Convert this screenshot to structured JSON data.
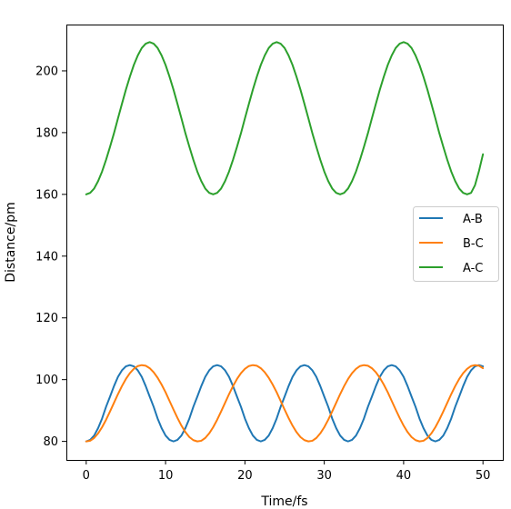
{
  "chart_data": {
    "type": "line",
    "title": "",
    "xlabel": "Time/fs",
    "ylabel": "Distance/pm",
    "xlim": [
      -2.5,
      52.5
    ],
    "ylim": [
      74,
      215
    ],
    "xticks": [
      0,
      10,
      20,
      30,
      40,
      50
    ],
    "yticks": [
      80,
      100,
      120,
      140,
      160,
      180,
      200
    ],
    "grid": false,
    "legend_position": "center-right",
    "series": [
      {
        "name": "A-B",
        "color": "#1f77b4",
        "x": [
          0,
          0.5,
          1,
          1.5,
          2,
          2.5,
          3,
          3.5,
          4,
          4.5,
          5,
          5.5,
          6,
          6.5,
          7,
          7.5,
          8,
          8.5,
          9,
          9.5,
          10,
          10.5,
          11,
          11.5,
          12,
          12.5,
          13,
          13.5,
          14,
          14.5,
          15,
          15.5,
          16,
          16.5,
          17,
          17.5,
          18,
          18.5,
          19,
          19.5,
          20,
          20.5,
          21,
          21.5,
          22,
          22.5,
          23,
          23.5,
          24,
          24.5,
          25,
          25.5,
          26,
          26.5,
          27,
          27.5,
          28,
          28.5,
          29,
          29.5,
          30,
          30.5,
          31,
          31.5,
          32,
          32.5,
          33,
          33.5,
          34,
          34.5,
          35,
          35.5,
          36,
          36.5,
          37,
          37.5,
          38,
          38.5,
          39,
          39.5,
          40,
          40.5,
          41,
          41.5,
          42,
          42.5,
          43,
          43.5,
          44,
          44.5,
          45,
          45.5,
          46,
          46.5,
          47,
          47.5,
          48,
          48.5,
          49,
          49.5,
          50
        ],
        "y": [
          80.0,
          80.5,
          81.9,
          84.3,
          87.4,
          91.2,
          94.5,
          97.9,
          100.9,
          103.0,
          104.3,
          104.7,
          104.3,
          103.0,
          100.9,
          97.9,
          94.5,
          91.2,
          87.4,
          84.3,
          81.9,
          80.5,
          80.0,
          80.5,
          81.9,
          84.3,
          87.4,
          91.2,
          94.5,
          97.9,
          100.9,
          103.0,
          104.3,
          104.7,
          104.3,
          103.0,
          100.9,
          97.9,
          94.5,
          91.2,
          87.4,
          84.3,
          81.9,
          80.5,
          80.0,
          80.5,
          81.9,
          84.3,
          87.4,
          91.2,
          94.5,
          97.9,
          100.9,
          103.0,
          104.3,
          104.7,
          104.3,
          103.0,
          100.9,
          97.9,
          94.5,
          91.2,
          87.4,
          84.3,
          81.9,
          80.5,
          80.0,
          80.5,
          81.9,
          84.3,
          87.4,
          91.2,
          94.5,
          97.9,
          100.9,
          103.0,
          104.3,
          104.7,
          104.3,
          103.0,
          100.9,
          97.9,
          94.5,
          91.2,
          87.4,
          84.3,
          81.9,
          80.5,
          80.0,
          80.5,
          81.9,
          84.3,
          87.4,
          91.2,
          94.5,
          97.9,
          100.9,
          103.0,
          104.3,
          104.7,
          104.3
        ]
      },
      {
        "name": "B-C",
        "color": "#ff7f0e",
        "x": [
          0,
          0.5,
          1,
          1.5,
          2,
          2.5,
          3,
          3.5,
          4,
          4.5,
          5,
          5.5,
          6,
          6.5,
          7,
          7.5,
          8,
          8.5,
          9,
          9.5,
          10,
          10.5,
          11,
          11.5,
          12,
          12.5,
          13,
          13.5,
          14,
          14.5,
          15,
          15.5,
          16,
          16.5,
          17,
          17.5,
          18,
          18.5,
          19,
          19.5,
          20,
          20.5,
          21,
          21.5,
          22,
          22.5,
          23,
          23.5,
          24,
          24.5,
          25,
          25.5,
          26,
          26.5,
          27,
          27.5,
          28,
          28.5,
          29,
          29.5,
          30,
          30.5,
          31,
          31.5,
          32,
          32.5,
          33,
          33.5,
          34,
          34.5,
          35,
          35.5,
          36,
          36.5,
          37,
          37.5,
          38,
          38.5,
          39,
          39.5,
          40,
          40.5,
          41,
          41.5,
          42,
          42.5,
          43,
          43.5,
          44,
          44.5,
          45,
          45.5,
          46,
          46.5,
          47,
          47.5,
          48,
          48.5,
          49,
          49.5,
          50
        ],
        "y": [
          80.0,
          80.2,
          81.1,
          82.6,
          84.6,
          87.0,
          89.7,
          92.5,
          95.3,
          97.9,
          100.2,
          102.1,
          103.5,
          104.4,
          104.7,
          104.5,
          103.7,
          102.4,
          100.6,
          98.4,
          95.9,
          93.1,
          90.3,
          87.6,
          85.1,
          83.0,
          81.4,
          80.4,
          80.0,
          80.2,
          81.1,
          82.6,
          84.6,
          87.0,
          89.7,
          92.5,
          95.3,
          97.9,
          100.2,
          102.1,
          103.5,
          104.4,
          104.7,
          104.5,
          103.7,
          102.4,
          100.6,
          98.4,
          95.9,
          93.1,
          90.3,
          87.6,
          85.1,
          83.0,
          81.4,
          80.4,
          80.0,
          80.2,
          81.1,
          82.6,
          84.6,
          87.0,
          89.7,
          92.5,
          95.3,
          97.9,
          100.2,
          102.1,
          103.5,
          104.4,
          104.7,
          104.5,
          103.7,
          102.4,
          100.6,
          98.4,
          95.9,
          93.1,
          90.3,
          87.6,
          85.1,
          83.0,
          81.4,
          80.4,
          80.0,
          80.2,
          81.1,
          82.6,
          84.6,
          87.0,
          89.7,
          92.5,
          95.3,
          97.9,
          100.2,
          102.1,
          103.5,
          104.4,
          104.7,
          104.5,
          103.7
        ]
      },
      {
        "name": "A-C",
        "color": "#2ca02c",
        "x": [
          0,
          0.5,
          1,
          1.5,
          2,
          2.5,
          3,
          3.5,
          4,
          4.5,
          5,
          5.5,
          6,
          6.5,
          7,
          7.5,
          8,
          8.5,
          9,
          9.5,
          10,
          10.5,
          11,
          11.5,
          12,
          12.5,
          13,
          13.5,
          14,
          14.5,
          15,
          15.5,
          16,
          16.5,
          17,
          17.5,
          18,
          18.5,
          19,
          19.5,
          20,
          20.5,
          21,
          21.5,
          22,
          22.5,
          23,
          23.5,
          24,
          24.5,
          25,
          25.5,
          26,
          26.5,
          27,
          27.5,
          28,
          28.5,
          29,
          29.5,
          30,
          30.5,
          31,
          31.5,
          32,
          32.5,
          33,
          33.5,
          34,
          34.5,
          35,
          35.5,
          36,
          36.5,
          37,
          37.5,
          38,
          38.5,
          39,
          39.5,
          40,
          40.5,
          41,
          41.5,
          42,
          42.5,
          43,
          43.5,
          44,
          44.5,
          45,
          45.5,
          46,
          46.5,
          47,
          47.5,
          48,
          48.5,
          49,
          49.5,
          50
        ],
        "y": [
          160.0,
          160.5,
          161.9,
          164.3,
          167.4,
          171.2,
          175.4,
          179.8,
          184.6,
          189.3,
          193.9,
          198.1,
          201.9,
          205.0,
          207.4,
          208.8,
          209.3,
          208.8,
          207.4,
          205.0,
          201.9,
          198.1,
          193.9,
          189.3,
          184.6,
          179.8,
          175.4,
          171.2,
          167.4,
          164.3,
          161.9,
          160.5,
          160.0,
          160.5,
          161.9,
          164.3,
          167.4,
          171.2,
          175.4,
          179.8,
          184.6,
          189.3,
          193.9,
          198.1,
          201.9,
          205.0,
          207.4,
          208.8,
          209.3,
          208.8,
          207.4,
          205.0,
          201.9,
          198.1,
          193.9,
          189.3,
          184.6,
          179.8,
          175.4,
          171.2,
          167.4,
          164.3,
          161.9,
          160.5,
          160.0,
          160.5,
          161.9,
          164.3,
          167.4,
          171.2,
          175.4,
          179.8,
          184.6,
          189.3,
          193.9,
          198.1,
          201.9,
          205.0,
          207.4,
          208.8,
          209.3,
          208.8,
          207.4,
          205.0,
          201.9,
          198.1,
          193.9,
          189.3,
          184.6,
          179.8,
          175.4,
          171.2,
          167.4,
          164.3,
          161.9,
          160.5,
          160.0,
          160.5,
          163.0,
          167.6,
          173.0
        ]
      }
    ]
  }
}
